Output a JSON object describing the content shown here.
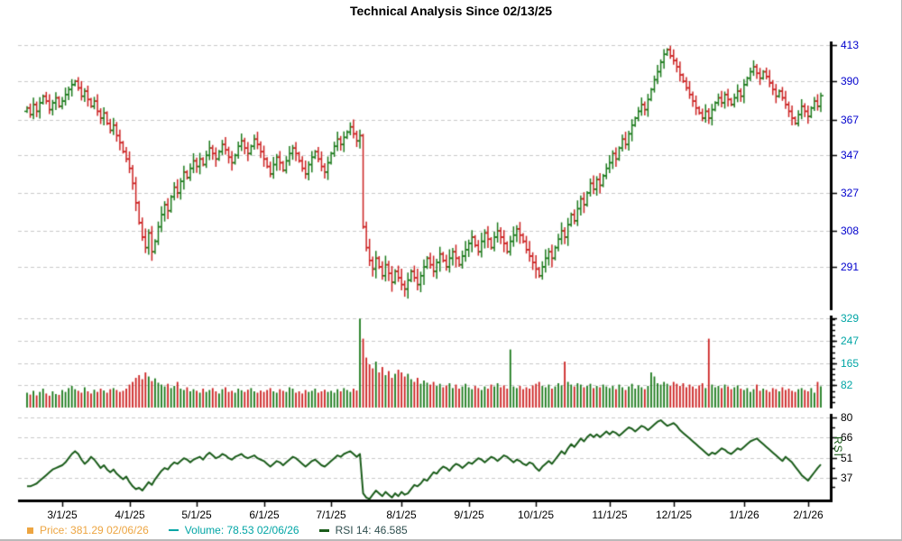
{
  "title": "Technical Analysis Since 02/13/25",
  "colors": {
    "up": "#1b7a1b",
    "down": "#cc2222",
    "rsi_line": "#1a5c1a",
    "price_axis_labels": "#0000cd",
    "volume_axis_labels": "#00a5a5",
    "rsi_axis_labels": "#000000",
    "axis_line": "#000000",
    "gridline": "#c9c9c9",
    "legend_price": "#eda541",
    "legend_volume": "#00a5a5",
    "legend_rsi_text": "#2f4f4f",
    "legend_rsi_marker": "#1a5c1a",
    "title_color": "#000000"
  },
  "legend": {
    "price": {
      "marker": "square-icon",
      "label": "Price:",
      "value": "381.29",
      "date": "02/06/26"
    },
    "volume": {
      "marker": "dash-icon",
      "label": "Volume:",
      "value": "78.53",
      "date": "02/06/26"
    },
    "rsi": {
      "marker": "dash-icon",
      "label": "RSI 14:",
      "value": "46.585",
      "date": ""
    }
  },
  "rsi_axis_title": "RSI",
  "x_axis": {
    "labels": [
      "3/1/25",
      "4/1/25",
      "5/1/25",
      "6/1/25",
      "7/1/25",
      "8/1/25",
      "9/1/25",
      "10/1/25",
      "11/1/25",
      "12/1/25",
      "1/1/26",
      "2/1/26"
    ],
    "label_indices": [
      11,
      32,
      53,
      74,
      95,
      117,
      138,
      159,
      182,
      202,
      224,
      244
    ],
    "n_points": 249,
    "start_date": "02/13/25",
    "end_date": "02/06/26"
  },
  "chart_data": [
    {
      "type": "ohlc",
      "title": "Price",
      "scale": "log",
      "yticks": [
        413,
        390,
        367,
        347,
        327,
        308,
        291
      ],
      "ylim": [
        266,
        418
      ],
      "first_open": 372,
      "last": {
        "value": 381.29,
        "date": "02/06/26"
      },
      "close": [
        374,
        370,
        376,
        372,
        377,
        381,
        378,
        373,
        377,
        380,
        375,
        378,
        382,
        385,
        388,
        390,
        386,
        381,
        384,
        379,
        375,
        378,
        372,
        368,
        371,
        365,
        361,
        364,
        358,
        354,
        349,
        345,
        340,
        332,
        322,
        312,
        305,
        300,
        307,
        298,
        303,
        310,
        316,
        321,
        318,
        325,
        330,
        327,
        333,
        338,
        335,
        340,
        344,
        341,
        345,
        342,
        347,
        351,
        348,
        345,
        349,
        353,
        350,
        346,
        343,
        347,
        352,
        355,
        351,
        348,
        352,
        356,
        353,
        349,
        345,
        341,
        337,
        342,
        346,
        343,
        339,
        344,
        348,
        351,
        348,
        344,
        340,
        337,
        342,
        346,
        349,
        345,
        341,
        338,
        343,
        348,
        352,
        356,
        353,
        357,
        360,
        363,
        359,
        355,
        358,
        310,
        300,
        294,
        290,
        295,
        291,
        287,
        292,
        288,
        284,
        289,
        286,
        283,
        281,
        285,
        289,
        286,
        283,
        287,
        291,
        295,
        292,
        289,
        293,
        297,
        294,
        291,
        295,
        298,
        295,
        292,
        296,
        299,
        302,
        305,
        301,
        298,
        303,
        307,
        304,
        300,
        305,
        308,
        305,
        302,
        298,
        303,
        306,
        309,
        306,
        303,
        299,
        296,
        293,
        290,
        287,
        291,
        295,
        298,
        295,
        300,
        304,
        308,
        305,
        311,
        316,
        313,
        319,
        324,
        321,
        327,
        332,
        329,
        334,
        331,
        336,
        340,
        343,
        348,
        345,
        351,
        356,
        353,
        359,
        364,
        368,
        372,
        376,
        373,
        379,
        385,
        391,
        396,
        402,
        407,
        410,
        406,
        403,
        399,
        394,
        390,
        386,
        382,
        378,
        374,
        371,
        368,
        372,
        368,
        373,
        377,
        380,
        377,
        382,
        379,
        376,
        380,
        384,
        381,
        388,
        392,
        396,
        399,
        395,
        392,
        396,
        393,
        389,
        385,
        381,
        384,
        380,
        376,
        372,
        368,
        365,
        370,
        375,
        372,
        369,
        374,
        378,
        375,
        381.29
      ]
    },
    {
      "type": "bar",
      "title": "Volume",
      "yticks": [
        329,
        247,
        165,
        82
      ],
      "ylim": [
        0,
        345
      ],
      "last": {
        "value": 78.53,
        "date": "02/06/26"
      },
      "values": [
        55,
        48,
        62,
        45,
        58,
        70,
        52,
        44,
        60,
        50,
        47,
        65,
        58,
        72,
        80,
        68,
        62,
        55,
        75,
        60,
        52,
        66,
        58,
        70,
        63,
        55,
        68,
        72,
        65,
        58,
        62,
        70,
        85,
        95,
        110,
        120,
        105,
        130,
        115,
        98,
        108,
        92,
        85,
        78,
        88,
        72,
        80,
        95,
        70,
        65,
        75,
        60,
        68,
        62,
        55,
        70,
        58,
        65,
        72,
        60,
        52,
        68,
        75,
        58,
        62,
        55,
        70,
        64,
        58,
        66,
        72,
        60,
        55,
        63,
        58,
        65,
        72,
        60,
        55,
        68,
        62,
        58,
        75,
        70,
        55,
        60,
        52,
        65,
        58,
        62,
        70,
        55,
        60,
        66,
        58,
        62,
        55,
        68,
        60,
        72,
        65,
        58,
        70,
        63,
        329,
        255,
        185,
        160,
        145,
        170,
        130,
        150,
        120,
        135,
        110,
        125,
        140,
        130,
        115,
        125,
        105,
        95,
        110,
        88,
        100,
        92,
        85,
        95,
        80,
        88,
        75,
        82,
        90,
        72,
        85,
        70,
        78,
        88,
        75,
        68,
        80,
        72,
        65,
        78,
        70,
        85,
        78,
        90,
        75,
        82,
        70,
        215,
        78,
        72,
        80,
        68,
        75,
        70,
        82,
        88,
        95,
        80,
        75,
        85,
        70,
        78,
        90,
        82,
        170,
        95,
        85,
        78,
        90,
        85,
        75,
        80,
        88,
        72,
        80,
        75,
        85,
        78,
        72,
        80,
        68,
        85,
        75,
        65,
        78,
        88,
        70,
        82,
        75,
        68,
        80,
        130,
        115,
        90,
        85,
        95,
        88,
        80,
        95,
        88,
        80,
        90,
        75,
        85,
        78,
        70,
        82,
        90,
        72,
        255,
        85,
        75,
        80,
        72,
        85,
        78,
        68,
        75,
        82,
        70,
        65,
        72,
        58,
        68,
        85,
        62,
        70,
        65,
        58,
        72,
        68,
        60,
        75,
        65,
        70,
        62,
        58,
        68,
        72,
        65,
        60,
        72,
        55,
        95,
        78.53
      ]
    },
    {
      "type": "line",
      "title": "RSI",
      "period": 14,
      "yticks": [
        80,
        66,
        51,
        37
      ],
      "ylim": [
        22,
        88
      ],
      "last": {
        "value": 46.585
      },
      "values": [
        31,
        31,
        32,
        33,
        35,
        37,
        39,
        41,
        43,
        44,
        45,
        46,
        48,
        51,
        54,
        56,
        54,
        50,
        47,
        49,
        52,
        50,
        47,
        44,
        46,
        43,
        41,
        43,
        40,
        38,
        36,
        38,
        34,
        31,
        29,
        30,
        28,
        31,
        34,
        32,
        36,
        39,
        42,
        44,
        43,
        46,
        48,
        47,
        49,
        51,
        50,
        48,
        50,
        51,
        52,
        50,
        53,
        55,
        53,
        51,
        52,
        54,
        53,
        51,
        50,
        52,
        53,
        54,
        52,
        51,
        52,
        53,
        51,
        50,
        49,
        47,
        45,
        47,
        49,
        48,
        46,
        48,
        50,
        52,
        51,
        49,
        47,
        45,
        47,
        49,
        50,
        48,
        46,
        45,
        47,
        49,
        51,
        53,
        52,
        54,
        55,
        56,
        54,
        52,
        54,
        26,
        23,
        22,
        25,
        28,
        26,
        24,
        27,
        25,
        23,
        26,
        24,
        27,
        25,
        26,
        29,
        32,
        31,
        33,
        36,
        35,
        38,
        41,
        40,
        43,
        45,
        44,
        42,
        45,
        47,
        46,
        44,
        46,
        48,
        47,
        49,
        51,
        50,
        48,
        50,
        52,
        51,
        49,
        51,
        53,
        52,
        50,
        48,
        50,
        49,
        47,
        46,
        48,
        47,
        44,
        42,
        45,
        47,
        49,
        47,
        50,
        53,
        56,
        54,
        58,
        61,
        59,
        62,
        65,
        63,
        66,
        68,
        66,
        68,
        66,
        68,
        70,
        68,
        70,
        69,
        67,
        69,
        71,
        73,
        72,
        70,
        72,
        74,
        73,
        71,
        73,
        75,
        77,
        78,
        76,
        74,
        75,
        76,
        74,
        71,
        69,
        67,
        65,
        63,
        61,
        59,
        57,
        55,
        53,
        55,
        54,
        56,
        58,
        57,
        55,
        54,
        56,
        58,
        57,
        59,
        61,
        63,
        64,
        65,
        63,
        61,
        59,
        57,
        55,
        53,
        51,
        49,
        52,
        50,
        48,
        45,
        42,
        39,
        37,
        35,
        38,
        41,
        44,
        46.585
      ]
    }
  ]
}
